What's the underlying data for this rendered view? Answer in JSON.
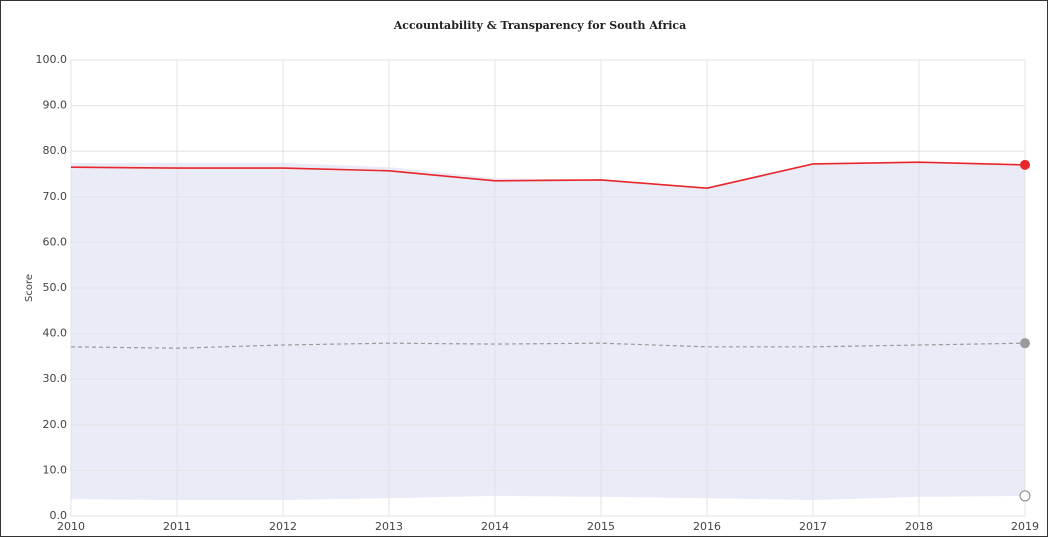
{
  "chart_data": {
    "type": "line",
    "title": "Accountability & Transparency for South Africa",
    "y_label": "Score",
    "x": [
      2010,
      2011,
      2012,
      2013,
      2014,
      2015,
      2016,
      2017,
      2018,
      2019
    ],
    "xlim": [
      2010,
      2019
    ],
    "xticks": [
      2010,
      2011,
      2012,
      2013,
      2014,
      2015,
      2016,
      2017,
      2018,
      2019
    ],
    "ylim": [
      0,
      100
    ],
    "yticks": [
      {
        "value": 0,
        "label": "0.0"
      },
      {
        "value": 10,
        "label": "10.0"
      },
      {
        "value": 20,
        "label": "20.0"
      },
      {
        "value": 30,
        "label": "30.0"
      },
      {
        "value": 40,
        "label": "40.0"
      },
      {
        "value": 50,
        "label": "50.0"
      },
      {
        "value": 60,
        "label": "60.0"
      },
      {
        "value": 70,
        "label": "70.0"
      },
      {
        "value": 80,
        "label": "80.0"
      },
      {
        "value": 90,
        "label": "90.0"
      },
      {
        "value": 100,
        "label": "100.0"
      }
    ],
    "grid": true,
    "range": {
      "color": "#e9ebf6",
      "upper": [
        77.4,
        77.4,
        77.4,
        76.5,
        74.1,
        73.7,
        71.9,
        77.2,
        77.6,
        77.0
      ],
      "lower": [
        3.7,
        3.5,
        3.5,
        3.9,
        4.4,
        4.2,
        3.9,
        3.5,
        4.2,
        4.4
      ]
    },
    "series": [
      {
        "color": "#e8262b",
        "dashed": false,
        "values": [
          76.5,
          76.3,
          76.3,
          75.7,
          73.5,
          73.7,
          71.9,
          77.2,
          77.6,
          77.0
        ]
      },
      {
        "color": "#9a9a9a",
        "dashed": true,
        "values": [
          37.1,
          36.8,
          37.5,
          37.9,
          37.7,
          37.9,
          37.1,
          37.1,
          37.5,
          37.9
        ]
      }
    ]
  }
}
